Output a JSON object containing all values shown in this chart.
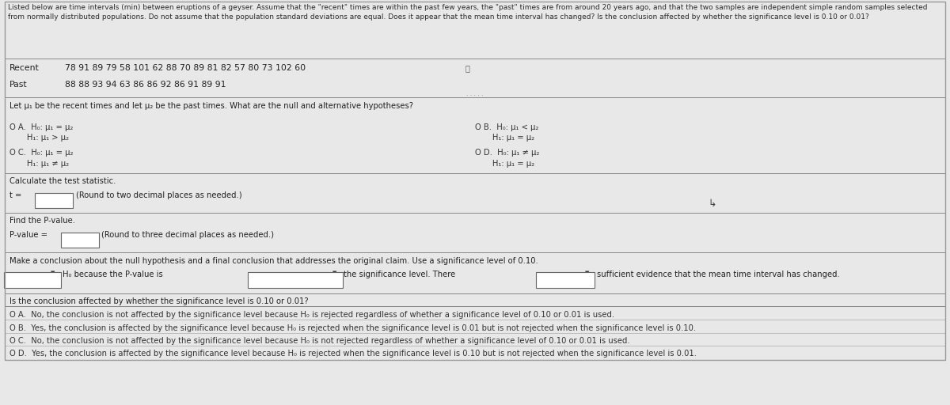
{
  "bg_color": "#e8e8e8",
  "header_text": "Listed below are time intervals (min) between eruptions of a geyser. Assume that the \"recent\" times are within the past few years, the \"past\" times are from around 20 years ago, and that the two samples are independent simple random samples selected\nfrom normally distributed populations. Do not assume that the population standard deviations are equal. Does it appear that the mean time interval has changed? Is the conclusion affected by whether the significance level is 0.10 or 0.01?",
  "recent_label": "Recent",
  "recent_data": "78 91 89 79 58 101 62 88 70 89 81 82 57 80 73 102 60",
  "past_label": "Past",
  "past_data": "88 88 93 94 63 86 86 92 86 91 89 91",
  "hypotheses_question": "Let μ₁ be the recent times and let μ₂ be the past times. What are the null and alternative hypotheses?",
  "opt_A_h0": "O A.  H₀: μ₁ = μ₂",
  "opt_A_h1": "       H₁: μ₁ > μ₂",
  "opt_B_h0": "O B.  H₀: μ₁ < μ₂",
  "opt_B_h1": "       H₁: μ₁ = μ₂",
  "opt_C_h0": "O C.  H₀: μ₁ = μ₂",
  "opt_C_h1": "       H₁: μ₁ ≠ μ₂",
  "opt_D_h0": "O D.  H₀: μ₁ ≠ μ₂",
  "opt_D_h1": "       H₁: μ₁ = μ₂",
  "calc_stat": "Calculate the test statistic.",
  "pval_header": "Find the P-value.",
  "conclusion_header": "Make a conclusion about the null hypothesis and a final conclusion that addresses the original claim. Use a significance level of 0.10.",
  "affected_question": "Is the conclusion affected by whether the significance level is 0.10 or 0.01?",
  "ans_A": "O A.  No, the conclusion is not affected by the significance level because H₀ is rejected regardless of whether a significance level of 0.10 or 0.01 is used.",
  "ans_B": "O B.  Yes, the conclusion is affected by the significance level because H₀ is rejected when the significance level is 0.01 but is not rejected when the significance level is 0.10.",
  "ans_C": "O C.  No, the conclusion is not affected by the significance level because H₀ is not rejected regardless of whether a significance level of 0.10 or 0.01 is used.",
  "ans_D": "O D.  Yes, the conclusion is affected by the significance level because H₀ is rejected when the significance level is 0.10 but is not rejected when the significance level is 0.01."
}
